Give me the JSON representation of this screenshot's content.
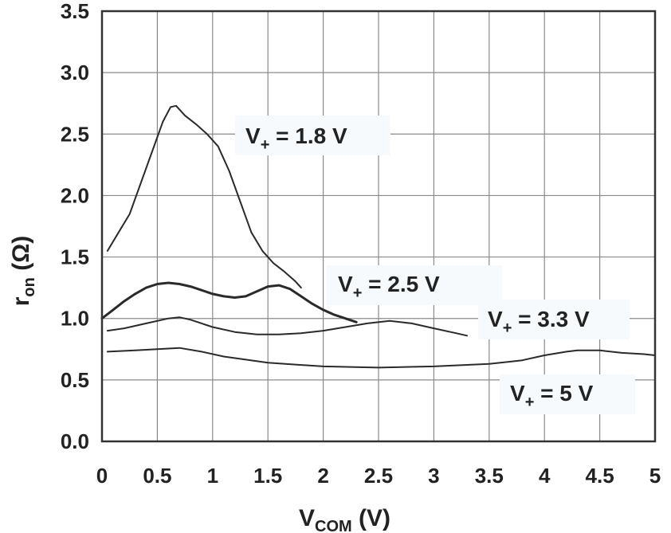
{
  "chart_data": {
    "type": "line",
    "xlabel": {
      "main": "V",
      "sub": "COM",
      "suffix": " (V)"
    },
    "ylabel": {
      "main": "r",
      "sub": "on",
      "suffix": " (Ω)"
    },
    "xlim": [
      0,
      5
    ],
    "ylim": [
      0,
      3.5
    ],
    "xticks": [
      0,
      0.5,
      1,
      1.5,
      2,
      2.5,
      3,
      3.5,
      4,
      4.5,
      5
    ],
    "xtick_labels": [
      "0",
      "0.5",
      "1",
      "1.5",
      "2",
      "2.5",
      "3",
      "3.5",
      "4",
      "4.5",
      "5"
    ],
    "yticks": [
      0,
      0.5,
      1,
      1.5,
      2,
      2.5,
      3,
      3.5
    ],
    "ytick_labels": [
      "0.0",
      "0.5",
      "1.0",
      "1.5",
      "2.0",
      "2.5",
      "3.0",
      "3.5"
    ],
    "grid": true,
    "series": [
      {
        "name": "V+ = 1.8 V",
        "label": {
          "main": "V",
          "sub": "+",
          "suffix": " = 1.8 V"
        },
        "x": [
          0.05,
          0.15,
          0.25,
          0.35,
          0.45,
          0.55,
          0.62,
          0.67,
          0.75,
          0.85,
          0.95,
          1.05,
          1.15,
          1.25,
          1.35,
          1.45,
          1.55,
          1.65,
          1.75,
          1.8
        ],
        "y": [
          1.55,
          1.7,
          1.85,
          2.1,
          2.35,
          2.6,
          2.72,
          2.73,
          2.65,
          2.58,
          2.5,
          2.4,
          2.2,
          1.95,
          1.7,
          1.55,
          1.45,
          1.38,
          1.3,
          1.25
        ]
      },
      {
        "name": "V+ = 2.5 V",
        "label": {
          "main": "V",
          "sub": "+",
          "suffix": " = 2.5 V"
        },
        "x": [
          0,
          0.1,
          0.2,
          0.3,
          0.4,
          0.5,
          0.6,
          0.7,
          0.8,
          0.9,
          1.0,
          1.1,
          1.2,
          1.3,
          1.4,
          1.5,
          1.6,
          1.7,
          1.8,
          1.9,
          2.0,
          2.1,
          2.2,
          2.3
        ],
        "y": [
          1.0,
          1.07,
          1.14,
          1.2,
          1.25,
          1.28,
          1.29,
          1.28,
          1.26,
          1.23,
          1.2,
          1.18,
          1.17,
          1.18,
          1.22,
          1.26,
          1.27,
          1.24,
          1.18,
          1.12,
          1.07,
          1.03,
          1.0,
          0.97
        ]
      },
      {
        "name": "V+ = 3.3 V",
        "label": {
          "main": "V",
          "sub": "+",
          "suffix": " = 3.3 V"
        },
        "x": [
          0.05,
          0.2,
          0.4,
          0.6,
          0.7,
          0.8,
          1.0,
          1.2,
          1.4,
          1.6,
          1.8,
          2.0,
          2.2,
          2.4,
          2.6,
          2.8,
          3.0,
          3.2,
          3.3
        ],
        "y": [
          0.9,
          0.92,
          0.96,
          1.0,
          1.01,
          0.99,
          0.93,
          0.89,
          0.87,
          0.87,
          0.88,
          0.9,
          0.93,
          0.96,
          0.98,
          0.96,
          0.92,
          0.88,
          0.86
        ]
      },
      {
        "name": "V+ = 5 V",
        "label": {
          "main": "V",
          "sub": "+",
          "suffix": " = 5 V"
        },
        "x": [
          0.05,
          0.3,
          0.5,
          0.7,
          0.9,
          1.1,
          1.5,
          2.0,
          2.5,
          3.0,
          3.5,
          3.8,
          4.0,
          4.2,
          4.3,
          4.5,
          4.7,
          4.9,
          5.0
        ],
        "y": [
          0.73,
          0.74,
          0.75,
          0.76,
          0.73,
          0.69,
          0.64,
          0.61,
          0.6,
          0.61,
          0.63,
          0.66,
          0.7,
          0.73,
          0.74,
          0.74,
          0.72,
          0.71,
          0.7
        ]
      }
    ]
  }
}
